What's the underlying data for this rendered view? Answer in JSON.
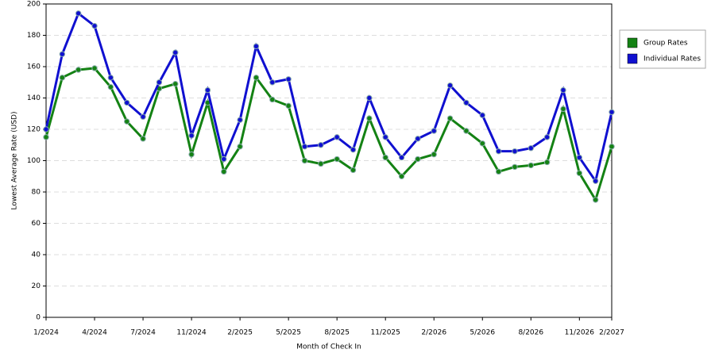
{
  "chart_data": {
    "type": "line",
    "xlabel": "Month of Check In",
    "ylabel": "Lowest Average Rate (USD)",
    "categories": [
      "1/2024",
      null,
      null,
      "4/2024",
      null,
      null,
      "7/2024",
      null,
      null,
      "11/2024",
      null,
      null,
      "2/2025",
      null,
      null,
      "5/2025",
      null,
      null,
      "8/2025",
      null,
      null,
      "11/2025",
      null,
      null,
      "2/2026",
      null,
      null,
      "5/2026",
      null,
      null,
      "8/2026",
      null,
      null,
      "11/2026",
      null,
      "2/2027"
    ],
    "series": [
      {
        "name": "Group Rates",
        "color": "#148214",
        "values": [
          115,
          153,
          158,
          159,
          147,
          125,
          114,
          146,
          149,
          104,
          137,
          93,
          109,
          153,
          139,
          135,
          100,
          98,
          101,
          94,
          127,
          102,
          90,
          101,
          104,
          127,
          119,
          111,
          93,
          96,
          97,
          99,
          133,
          92,
          75,
          109
        ]
      },
      {
        "name": "Individual Rates",
        "color": "#1010d0",
        "values": [
          120,
          168,
          194,
          186,
          153,
          137,
          128,
          150,
          169,
          116,
          145,
          101,
          126,
          173,
          150,
          152,
          109,
          110,
          115,
          107,
          140,
          115,
          102,
          114,
          119,
          148,
          137,
          129,
          106,
          106,
          108,
          115,
          145,
          102,
          87,
          131
        ]
      }
    ],
    "ylim": [
      0,
      200
    ],
    "yticks": [
      0,
      20,
      40,
      60,
      80,
      100,
      120,
      140,
      160,
      180,
      200
    ],
    "grid": true,
    "legend": "right"
  }
}
